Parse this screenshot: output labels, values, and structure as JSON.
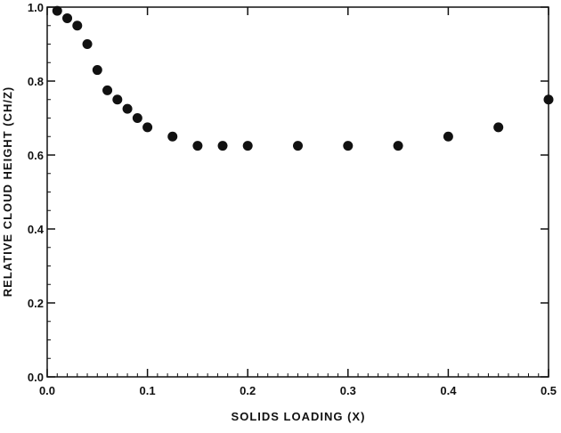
{
  "chart_data": {
    "type": "scatter",
    "xlabel": "SOLIDS LOADING (X)",
    "ylabel": "RELATIVE CLOUD HEIGHT (CH/Z)",
    "xlim": [
      0.0,
      0.5
    ],
    "ylim": [
      0.0,
      1.0
    ],
    "xticks": [
      0.0,
      0.1,
      0.2,
      0.3,
      0.4,
      0.5
    ],
    "yticks": [
      0.0,
      0.2,
      0.4,
      0.6,
      0.8,
      1.0
    ],
    "xtick_labels": [
      "0.0",
      "0.1",
      "0.2",
      "0.3",
      "0.4",
      "0.5"
    ],
    "ytick_labels": [
      "0.0",
      "0.2",
      "0.4",
      "0.6",
      "0.8",
      "1.0"
    ],
    "grid": false,
    "marker_color": "#111111",
    "series": [
      {
        "x": [
          0.01,
          0.02,
          0.03,
          0.04,
          0.05,
          0.06,
          0.07,
          0.08,
          0.09,
          0.1,
          0.125,
          0.15,
          0.175,
          0.2,
          0.25,
          0.3,
          0.35,
          0.4,
          0.45,
          0.5
        ],
        "y": [
          0.99,
          0.97,
          0.95,
          0.9,
          0.83,
          0.775,
          0.75,
          0.725,
          0.7,
          0.675,
          0.65,
          0.625,
          0.625,
          0.625,
          0.625,
          0.625,
          0.625,
          0.65,
          0.675,
          0.75
        ]
      }
    ]
  }
}
